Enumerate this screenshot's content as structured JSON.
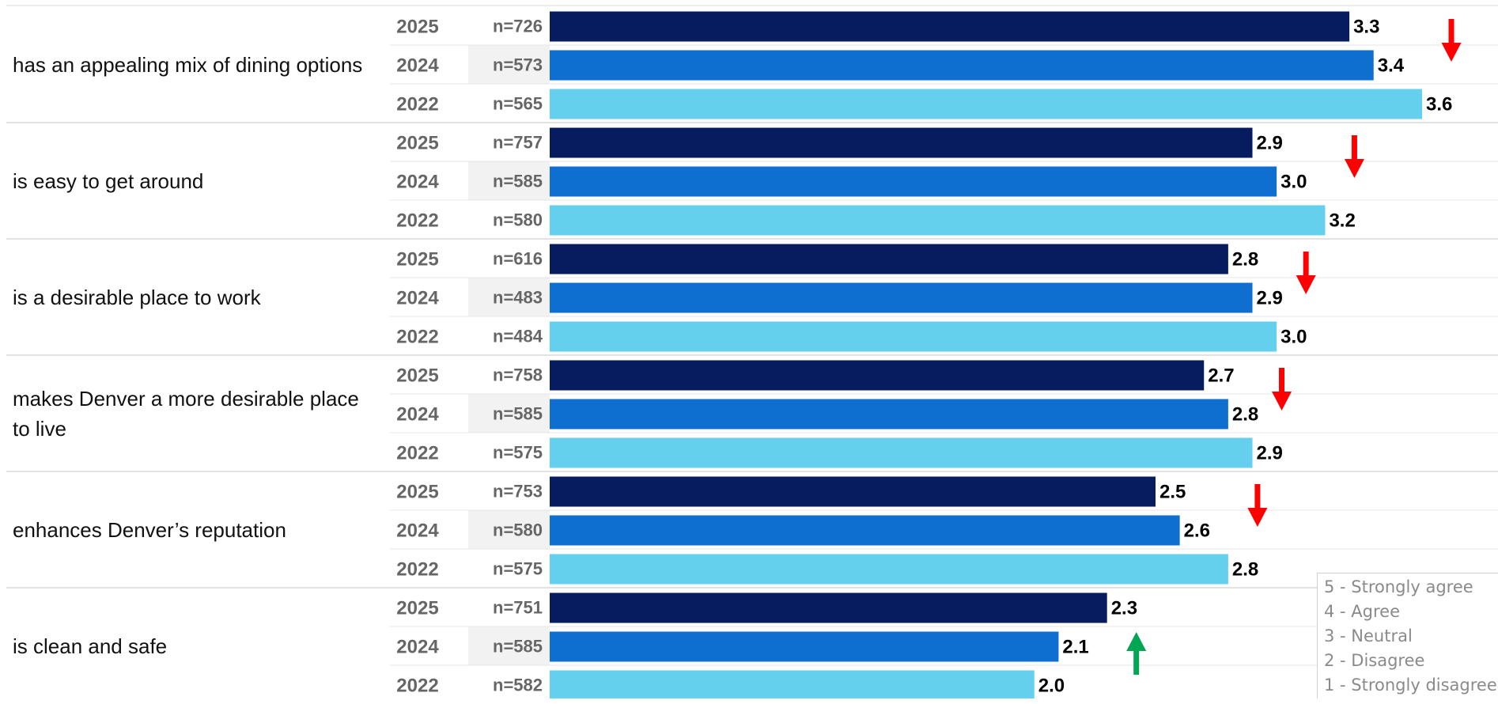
{
  "chart_data": {
    "type": "bar",
    "orientation": "horizontal",
    "categories": [
      "has an appealing mix of dining options",
      "is easy to get around",
      "is a desirable place to work",
      "makes Denver a more desirable place to live",
      "enhances Denver’s reputation",
      "is clean and safe"
    ],
    "series": [
      {
        "name": "2025",
        "color": "#061c5e",
        "n": [
          "n=726",
          "n=757",
          "n=616",
          "n=758",
          "n=753",
          "n=751"
        ],
        "values": [
          3.3,
          2.9,
          2.8,
          2.7,
          2.5,
          2.3
        ]
      },
      {
        "name": "2024",
        "color": "#0f6fd0",
        "n": [
          "n=573",
          "n=585",
          "n=483",
          "n=585",
          "n=580",
          "n=585"
        ],
        "values": [
          3.4,
          3.0,
          2.9,
          2.8,
          2.6,
          2.1
        ]
      },
      {
        "name": "2022",
        "color": "#64d0ee",
        "n": [
          "n=565",
          "n=580",
          "n=484",
          "n=575",
          "n=575",
          "n=582"
        ],
        "values": [
          3.6,
          3.2,
          3.0,
          2.9,
          2.8,
          2.0
        ]
      }
    ],
    "value_labels": [
      [
        "3.3",
        "3.4",
        "3.6"
      ],
      [
        "2.9",
        "3.0",
        "3.2"
      ],
      [
        "2.8",
        "2.9",
        "3.0"
      ],
      [
        "2.7",
        "2.8",
        "2.9"
      ],
      [
        "2.5",
        "2.6",
        "2.8"
      ],
      [
        "2.3",
        "2.1",
        "2.0"
      ]
    ],
    "trend": [
      "down",
      "down",
      "down",
      "down",
      "down",
      "up"
    ],
    "trend_colors": {
      "down": "#ff0000",
      "up": "#00a651"
    },
    "xlim": [
      0,
      5
    ],
    "grid": false,
    "legend_position": "bottom-right",
    "scale_legend": [
      "5 - Strongly agree",
      "4 - Agree",
      "3 - Neutral",
      "2 - Disagree",
      "1 - Strongly disagree"
    ]
  }
}
